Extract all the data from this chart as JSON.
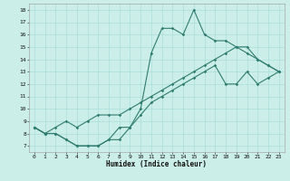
{
  "xlabel": "Humidex (Indice chaleur)",
  "bg_color": "#cceee8",
  "grid_color": "#aaddda",
  "line_color": "#2e7d6e",
  "xlim": [
    -0.5,
    23.5
  ],
  "ylim": [
    6.5,
    18.5
  ],
  "xticks": [
    0,
    1,
    2,
    3,
    4,
    5,
    6,
    7,
    8,
    9,
    10,
    11,
    12,
    13,
    14,
    15,
    16,
    17,
    18,
    19,
    20,
    21,
    22,
    23
  ],
  "yticks": [
    7,
    8,
    9,
    10,
    11,
    12,
    13,
    14,
    15,
    16,
    17,
    18
  ],
  "line1_x": [
    0,
    1,
    2,
    3,
    4,
    5,
    6,
    7,
    8,
    9,
    10,
    11,
    12,
    13,
    14,
    15,
    16,
    17,
    18,
    19,
    20,
    21,
    22,
    23
  ],
  "line1_y": [
    8.5,
    8.0,
    8.0,
    7.5,
    7.0,
    7.0,
    7.0,
    7.5,
    8.5,
    8.5,
    10.0,
    14.5,
    16.5,
    16.5,
    16.0,
    18.0,
    16.0,
    15.5,
    15.5,
    15.0,
    14.5,
    14.0,
    13.5,
    13.0
  ],
  "line2_x": [
    0,
    1,
    2,
    3,
    4,
    5,
    6,
    7,
    8,
    9,
    10,
    11,
    12,
    13,
    14,
    15,
    16,
    17,
    18,
    19,
    20,
    21,
    22,
    23
  ],
  "line2_y": [
    8.5,
    8.0,
    8.5,
    9.0,
    8.5,
    9.0,
    9.5,
    9.5,
    9.5,
    10.0,
    10.5,
    11.0,
    11.5,
    12.0,
    12.5,
    13.0,
    13.5,
    14.0,
    14.5,
    15.0,
    15.0,
    14.0,
    13.5,
    13.0
  ],
  "line3_x": [
    0,
    1,
    2,
    3,
    4,
    5,
    6,
    7,
    8,
    9,
    10,
    11,
    12,
    13,
    14,
    15,
    16,
    17,
    18,
    19,
    20,
    21,
    22,
    23
  ],
  "line3_y": [
    8.5,
    8.0,
    8.0,
    7.5,
    7.0,
    7.0,
    7.0,
    7.5,
    7.5,
    8.5,
    9.5,
    10.5,
    11.0,
    11.5,
    12.0,
    12.5,
    13.0,
    13.5,
    12.0,
    12.0,
    13.0,
    12.0,
    12.5,
    13.0
  ],
  "title_fontsize": 5,
  "tick_fontsize": 4.5,
  "xlabel_fontsize": 5.5,
  "linewidth": 0.8,
  "markersize": 1.8
}
